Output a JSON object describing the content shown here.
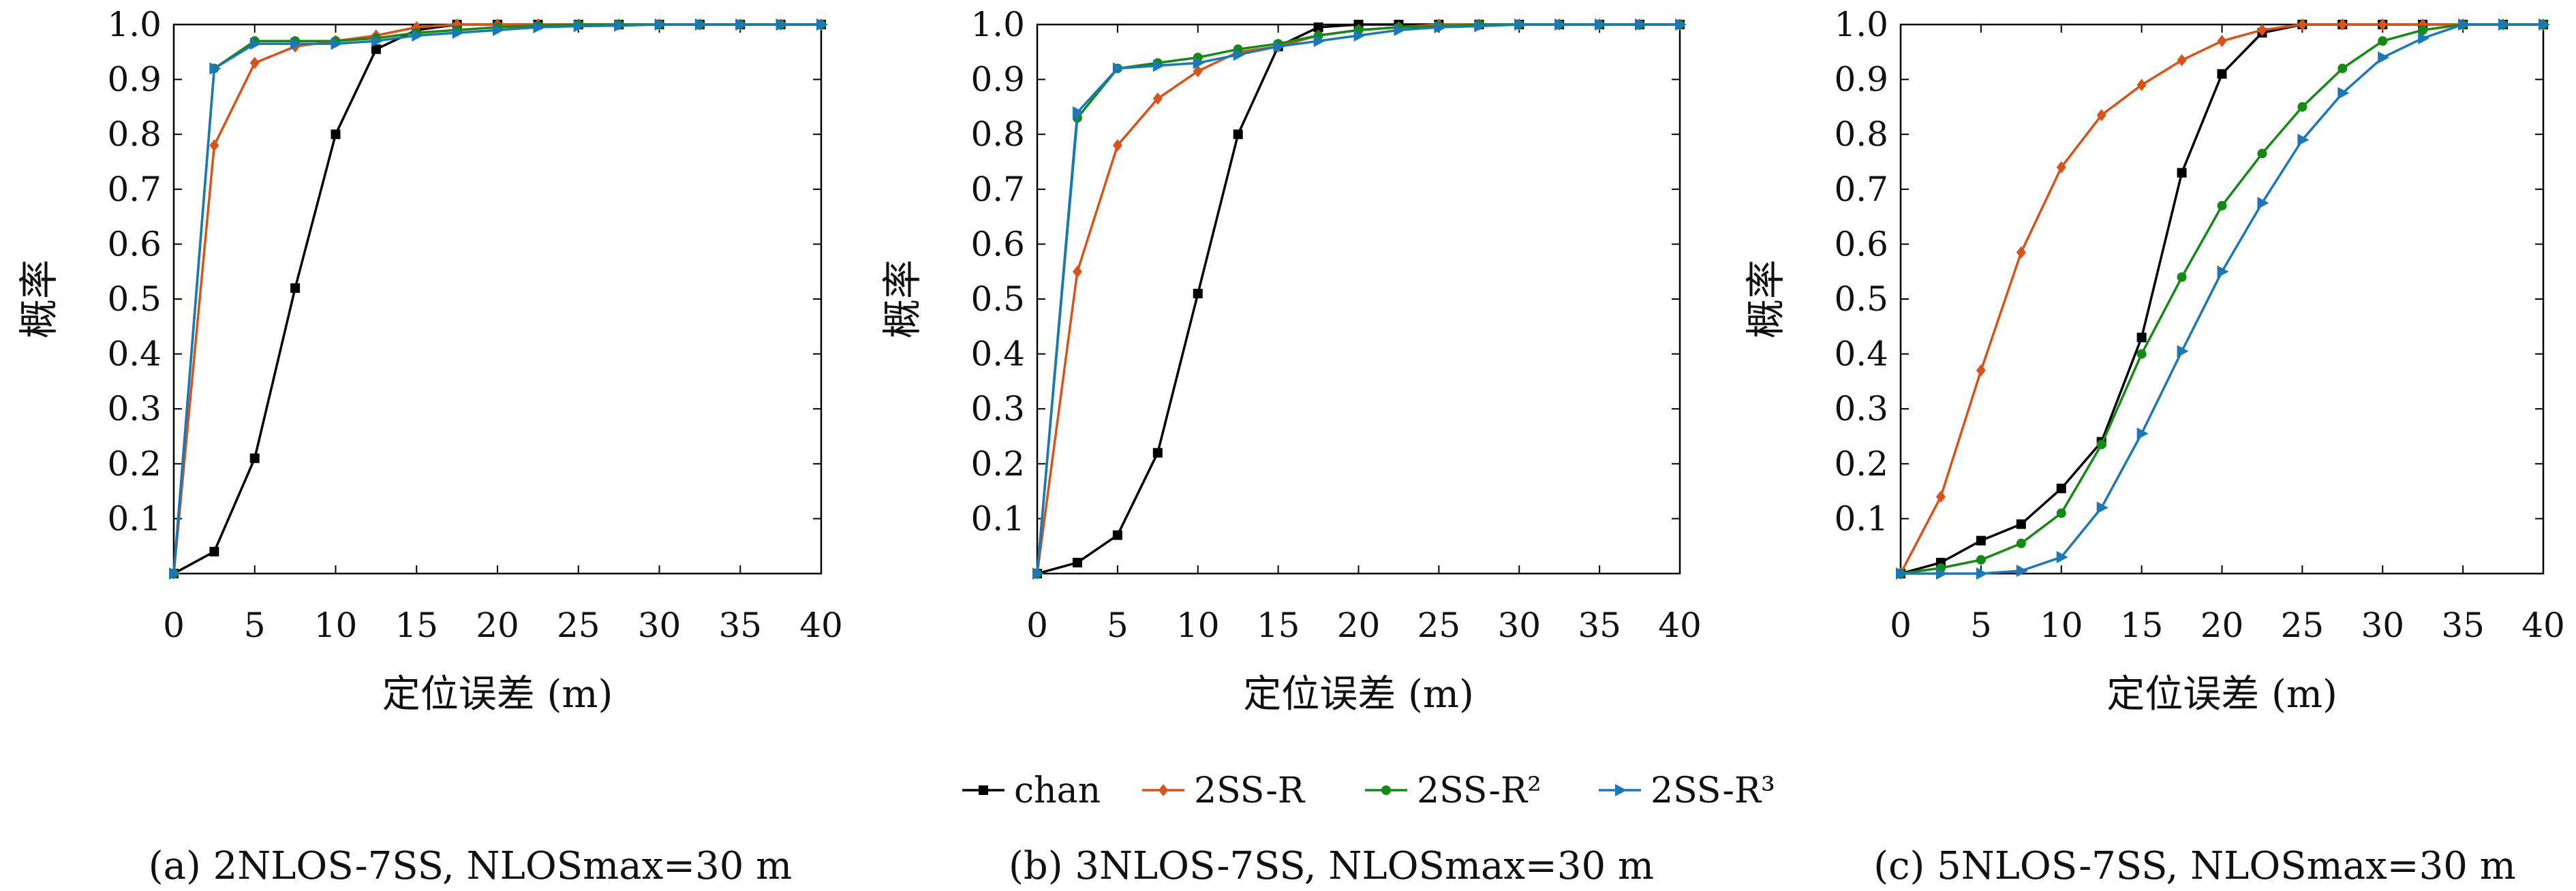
{
  "colors": {
    "chan": "#000000",
    "2SS-R": "#d95319",
    "2SS-R2": "#138a13",
    "2SS-R3": "#1a78b8"
  },
  "legend": {
    "placement": "bottom-center",
    "entries": [
      {
        "label": "chan",
        "marker": "square"
      },
      {
        "label": "2SS-R",
        "marker": "diamond"
      },
      {
        "label": "2SS-R²",
        "marker": "circle"
      },
      {
        "label": "2SS-R³",
        "marker": "triangle-right"
      }
    ]
  },
  "chart_data": [
    {
      "type": "line",
      "caption": "(a) 2NLOS-7SS, NLOSmax=30 m",
      "xlabel": "定位误差 (m)",
      "ylabel": "概率",
      "xlim": [
        0,
        40
      ],
      "ylim": [
        0,
        1
      ],
      "x_ticks": [
        "0",
        "5",
        "10",
        "15",
        "20",
        "25",
        "30",
        "35",
        "40"
      ],
      "y_ticks": [
        "0.1",
        "0.2",
        "0.3",
        "0.4",
        "0.5",
        "0.6",
        "0.7",
        "0.8",
        "0.9",
        "1.0"
      ],
      "grid": false,
      "x": [
        0,
        2.5,
        5,
        7.5,
        10,
        12.5,
        15,
        17.5,
        20,
        22.5,
        25,
        27.5,
        30,
        32.5,
        35,
        37.5,
        40
      ],
      "series": [
        {
          "name": "chan",
          "values": [
            0,
            0.04,
            0.21,
            0.52,
            0.8,
            0.955,
            0.99,
            1.0,
            1.0,
            1.0,
            1.0,
            1.0,
            1.0,
            1.0,
            1.0,
            1.0,
            1.0
          ]
        },
        {
          "name": "2SS-R",
          "values": [
            0,
            0.78,
            0.93,
            0.96,
            0.97,
            0.98,
            0.995,
            1.0,
            1.0,
            1.0,
            1.0,
            1.0,
            1.0,
            1.0,
            1.0,
            1.0,
            1.0
          ]
        },
        {
          "name": "2SS-R²",
          "values": [
            0,
            0.92,
            0.97,
            0.97,
            0.97,
            0.975,
            0.985,
            0.99,
            0.995,
            0.998,
            1.0,
            1.0,
            1.0,
            1.0,
            1.0,
            1.0,
            1.0
          ]
        },
        {
          "name": "2SS-R³",
          "values": [
            0,
            0.92,
            0.965,
            0.965,
            0.965,
            0.97,
            0.98,
            0.985,
            0.99,
            0.995,
            0.997,
            0.998,
            1.0,
            1.0,
            1.0,
            1.0,
            1.0
          ]
        }
      ]
    },
    {
      "type": "line",
      "caption": "(b) 3NLOS-7SS, NLOSmax=30 m",
      "xlabel": "定位误差 (m)",
      "ylabel": "概率",
      "xlim": [
        0,
        40
      ],
      "ylim": [
        0,
        1
      ],
      "x_ticks": [
        "0",
        "5",
        "10",
        "15",
        "20",
        "25",
        "30",
        "35",
        "40"
      ],
      "y_ticks": [
        "0.1",
        "0.2",
        "0.3",
        "0.4",
        "0.5",
        "0.6",
        "0.7",
        "0.8",
        "0.9",
        "1.0"
      ],
      "grid": false,
      "x": [
        0,
        2.5,
        5,
        7.5,
        10,
        12.5,
        15,
        17.5,
        20,
        22.5,
        25,
        27.5,
        30,
        32.5,
        35,
        37.5,
        40
      ],
      "series": [
        {
          "name": "chan",
          "values": [
            0,
            0.02,
            0.07,
            0.22,
            0.51,
            0.8,
            0.96,
            0.995,
            1.0,
            1.0,
            1.0,
            1.0,
            1.0,
            1.0,
            1.0,
            1.0,
            1.0
          ]
        },
        {
          "name": "2SS-R",
          "values": [
            0,
            0.55,
            0.78,
            0.865,
            0.915,
            0.95,
            0.96,
            0.98,
            0.99,
            0.995,
            1.0,
            1.0,
            1.0,
            1.0,
            1.0,
            1.0,
            1.0
          ]
        },
        {
          "name": "2SS-R²",
          "values": [
            0,
            0.83,
            0.92,
            0.93,
            0.94,
            0.955,
            0.965,
            0.98,
            0.99,
            0.995,
            0.997,
            1.0,
            1.0,
            1.0,
            1.0,
            1.0,
            1.0
          ]
        },
        {
          "name": "2SS-R³",
          "values": [
            0,
            0.84,
            0.92,
            0.925,
            0.93,
            0.945,
            0.96,
            0.97,
            0.98,
            0.99,
            0.995,
            0.997,
            1.0,
            1.0,
            1.0,
            1.0,
            1.0
          ]
        }
      ]
    },
    {
      "type": "line",
      "caption": "(c) 5NLOS-7SS, NLOSmax=30 m",
      "xlabel": "定位误差 (m)",
      "ylabel": "概率",
      "xlim": [
        0,
        40
      ],
      "ylim": [
        0,
        1
      ],
      "x_ticks": [
        "0",
        "5",
        "10",
        "15",
        "20",
        "25",
        "30",
        "35",
        "40"
      ],
      "y_ticks": [
        "0.1",
        "0.2",
        "0.3",
        "0.4",
        "0.5",
        "0.6",
        "0.7",
        "0.8",
        "0.9",
        "1.0"
      ],
      "grid": false,
      "x": [
        0,
        2.5,
        5,
        7.5,
        10,
        12.5,
        15,
        17.5,
        20,
        22.5,
        25,
        27.5,
        30,
        32.5,
        35,
        37.5,
        40
      ],
      "series": [
        {
          "name": "chan",
          "values": [
            0,
            0.02,
            0.06,
            0.09,
            0.155,
            0.24,
            0.43,
            0.73,
            0.91,
            0.985,
            1.0,
            1.0,
            1.0,
            1.0,
            1.0,
            1.0,
            1.0
          ]
        },
        {
          "name": "2SS-R",
          "values": [
            0,
            0.14,
            0.37,
            0.585,
            0.74,
            0.835,
            0.89,
            0.935,
            0.97,
            0.99,
            1.0,
            1.0,
            1.0,
            1.0,
            1.0,
            1.0,
            1.0
          ]
        },
        {
          "name": "2SS-R²",
          "values": [
            0,
            0.01,
            0.025,
            0.055,
            0.11,
            0.235,
            0.4,
            0.54,
            0.67,
            0.765,
            0.85,
            0.92,
            0.97,
            0.99,
            1.0,
            1.0,
            1.0
          ]
        },
        {
          "name": "2SS-R³",
          "values": [
            0,
            0.0,
            0.0,
            0.005,
            0.03,
            0.12,
            0.255,
            0.405,
            0.55,
            0.675,
            0.79,
            0.875,
            0.94,
            0.975,
            1.0,
            1.0,
            1.0
          ]
        }
      ]
    }
  ]
}
